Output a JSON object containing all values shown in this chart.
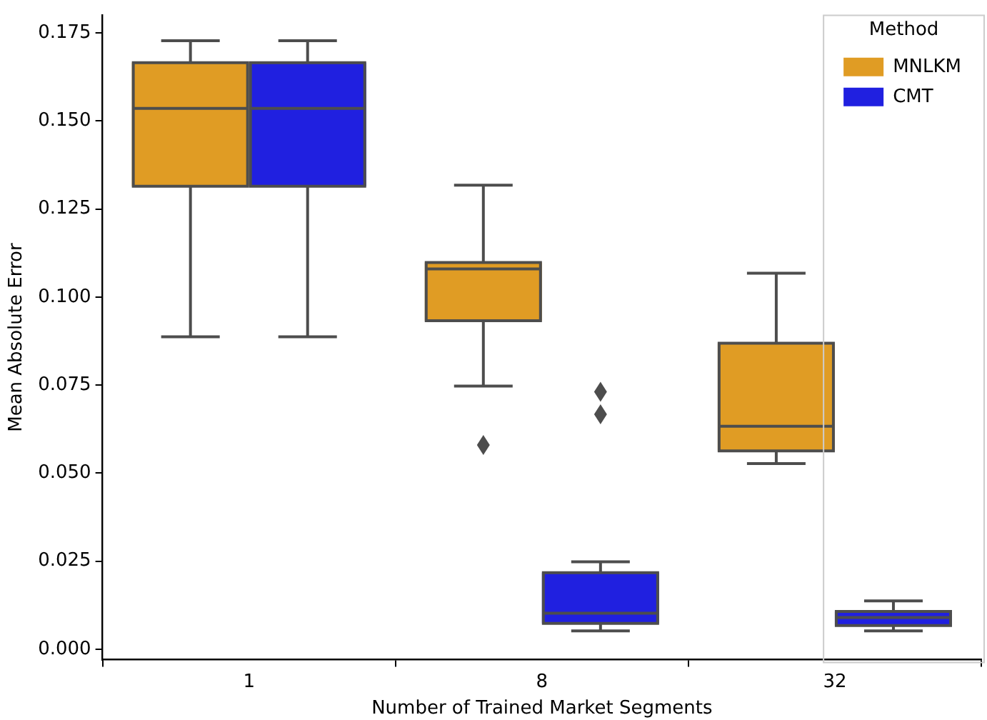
{
  "chart_data": {
    "type": "box",
    "xlabel": "Number of Trained Market Segments",
    "ylabel": "Mean Absolute Error",
    "legend_title": "Method",
    "legend": "top right",
    "categories": [
      "1",
      "8",
      "32"
    ],
    "ylim": [
      -0.003,
      0.18
    ],
    "yticks": [
      {
        "value": 0,
        "label": "0.000"
      },
      {
        "value": 0.025,
        "label": "0.025"
      },
      {
        "value": 0.05,
        "label": "0.050"
      },
      {
        "value": 0.075,
        "label": "0.075"
      },
      {
        "value": 0.1,
        "label": "0.100"
      },
      {
        "value": 0.125,
        "label": "0.125"
      },
      {
        "value": 0.15,
        "label": "0.150"
      },
      {
        "value": 0.175,
        "label": "0.175"
      }
    ],
    "grid": false,
    "series": [
      {
        "name": "MNLKM",
        "color": "#e09c24",
        "boxes": [
          {
            "low": 0.0887,
            "q1": 0.1315,
            "median": 0.1536,
            "q3": 0.1666,
            "high": 0.1728
          },
          {
            "low": 0.0747,
            "q1": 0.0933,
            "median": 0.108,
            "q3": 0.1098,
            "high": 0.1318,
            "outliers": [
              0.058
            ]
          },
          {
            "low": 0.0527,
            "q1": 0.0563,
            "median": 0.0633,
            "q3": 0.0869,
            "high": 0.1068
          }
        ]
      },
      {
        "name": "CMT",
        "color": "#2020e0",
        "boxes": [
          {
            "low": 0.0887,
            "q1": 0.1315,
            "median": 0.1536,
            "q3": 0.1666,
            "high": 0.1728
          },
          {
            "low": 0.0052,
            "q1": 0.0073,
            "median": 0.0102,
            "q3": 0.0217,
            "high": 0.0248,
            "outliers": [
              0.0731,
              0.0667
            ]
          },
          {
            "low": 0.0052,
            "q1": 0.0067,
            "median": 0.009,
            "q3": 0.0107,
            "high": 0.0137
          }
        ]
      }
    ]
  }
}
